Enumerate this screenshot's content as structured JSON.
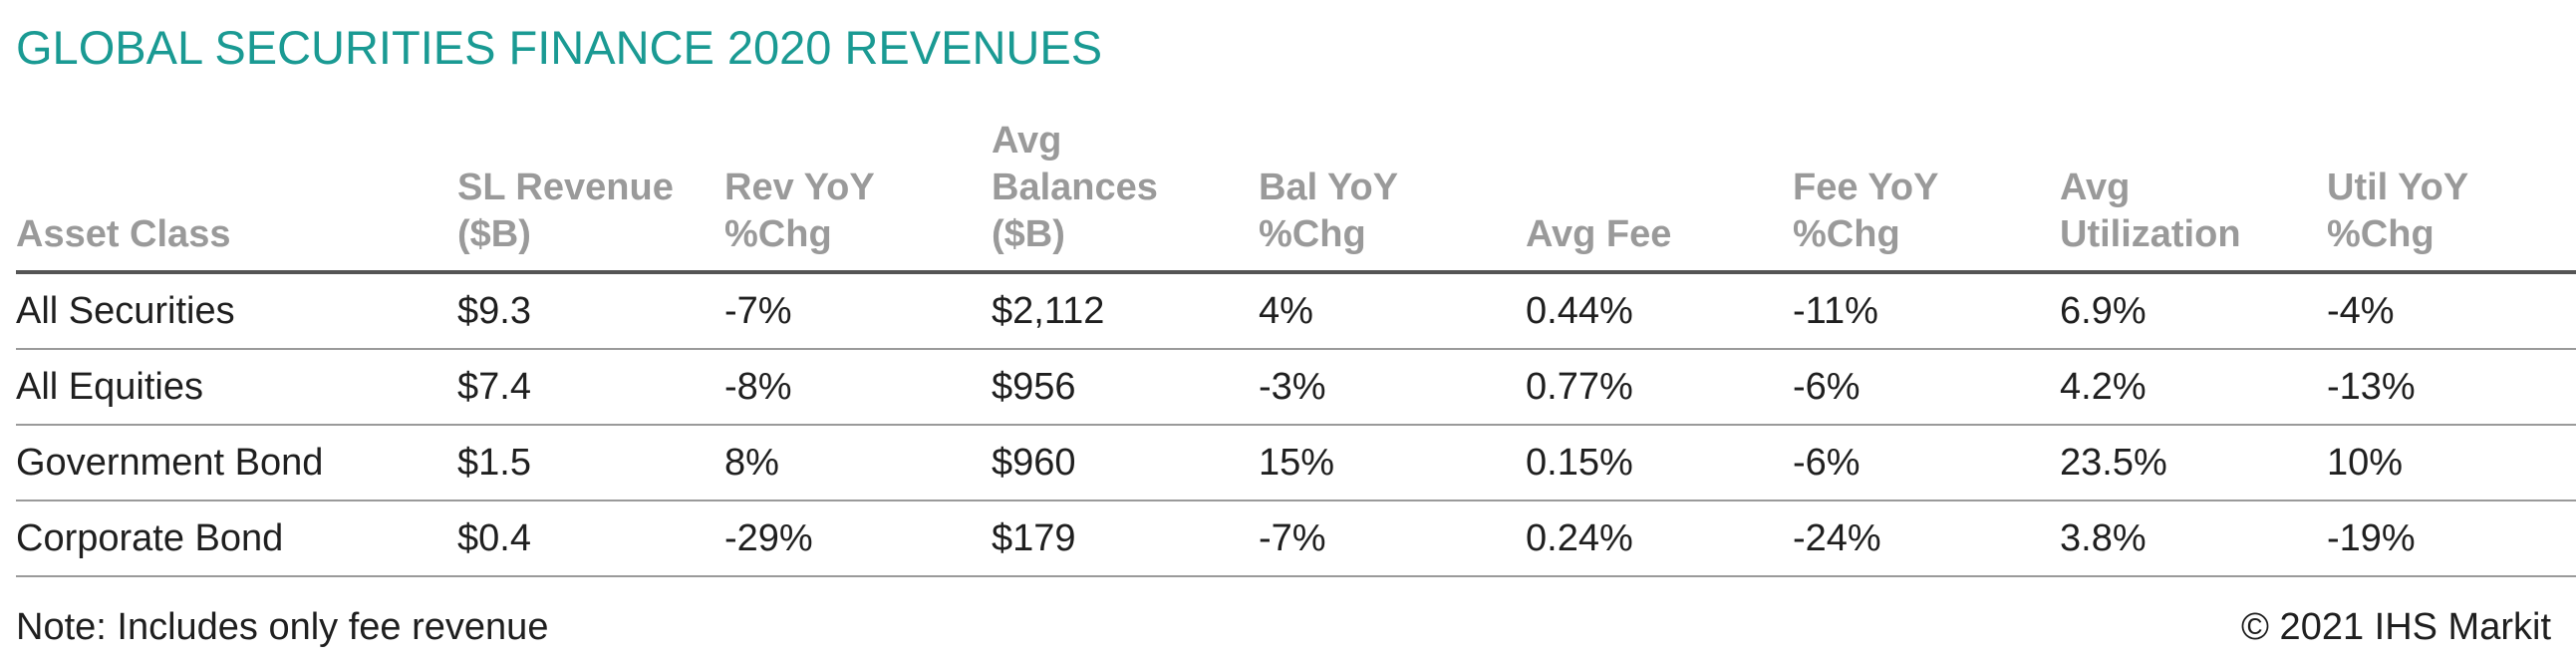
{
  "title": "GLOBAL SECURITIES FINANCE 2020 REVENUES",
  "table": {
    "headers": [
      [
        "Asset Class"
      ],
      [
        "SL Revenue",
        "($B)"
      ],
      [
        "Rev YoY",
        "%Chg"
      ],
      [
        "Avg",
        "Balances",
        "($B)"
      ],
      [
        "Bal YoY",
        "%Chg"
      ],
      [
        "Avg Fee"
      ],
      [
        "Fee YoY",
        "%Chg"
      ],
      [
        "Avg",
        "Utilization"
      ],
      [
        "Util YoY",
        "%Chg"
      ]
    ],
    "rows": [
      [
        "All Securities",
        "$9.3",
        "-7%",
        "$2,112",
        "4%",
        "0.44%",
        "-11%",
        "6.9%",
        "-4%"
      ],
      [
        "All Equities",
        "$7.4",
        "-8%",
        "$956",
        "-3%",
        "0.77%",
        "-6%",
        "4.2%",
        "-13%"
      ],
      [
        "Government Bond",
        "$1.5",
        "8%",
        "$960",
        "15%",
        "0.15%",
        "-6%",
        "23.5%",
        "10%"
      ],
      [
        "Corporate Bond",
        "$0.4",
        "-29%",
        "$179",
        "-7%",
        "0.24%",
        "-24%",
        "3.8%",
        "-19%"
      ]
    ]
  },
  "footer": {
    "note": "Note: Includes only fee revenue",
    "copyright": "© 2021 IHS Markit"
  },
  "colors": {
    "title": "#1a9a93",
    "header_text": "#9a9a9a",
    "body_text": "#1f1f1f",
    "header_rule": "#555555",
    "row_rule": "#9a9a9a"
  }
}
